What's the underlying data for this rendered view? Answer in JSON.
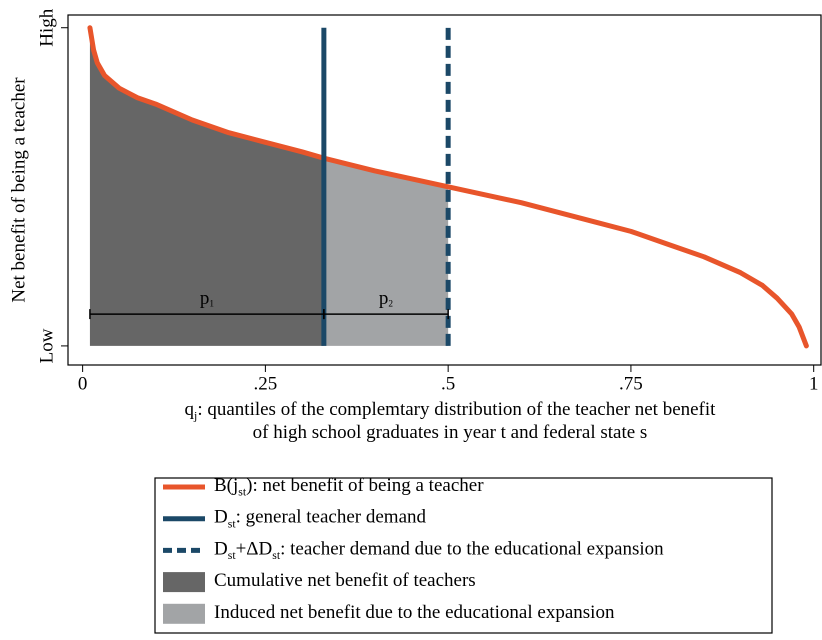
{
  "chart_data": {
    "type": "line",
    "y_label": "Net benefit of being a teacher",
    "x_label": [
      [
        {
          "t": "q"
        },
        {
          "t": "j",
          "sub": true
        },
        {
          "t": ": quantiles of the complemtary distribution of the teacher net benefit"
        }
      ],
      [
        {
          "t": "of high school graduates in year t and federal state s"
        }
      ]
    ],
    "xlim": [
      -0.02,
      1.01
    ],
    "ylim": [
      -0.06,
      1.04
    ],
    "xticks": [
      0,
      {
        "value": 0.25,
        "label": ".25"
      },
      {
        "value": 0.5,
        "label": ".5"
      },
      {
        "value": 0.75,
        "label": ".75"
      },
      1
    ],
    "yticks": [
      {
        "value": 0,
        "label": "Low"
      },
      {
        "value": 1,
        "label": "High"
      }
    ],
    "series": [
      {
        "type": "line",
        "color": "#e8552b",
        "name": [
          {
            "t": "B(j"
          },
          {
            "t": "st",
            "sub": true
          },
          {
            "t": "): net benefit of being a teacher"
          }
        ],
        "x": [
          0.01,
          0.015,
          0.02,
          0.03,
          0.05,
          0.075,
          0.1,
          0.15,
          0.2,
          0.25,
          0.3,
          0.33,
          0.4,
          0.5,
          0.6,
          0.7,
          0.75,
          0.8,
          0.85,
          0.9,
          0.93,
          0.95,
          0.97,
          0.98,
          0.99
        ],
        "values": [
          1,
          0.93,
          0.89,
          0.85,
          0.81,
          0.78,
          0.76,
          0.71,
          0.67,
          0.64,
          0.61,
          0.59,
          0.55,
          0.5,
          0.45,
          0.39,
          0.36,
          0.32,
          0.28,
          0.23,
          0.19,
          0.15,
          0.1,
          0.06,
          0
        ]
      },
      {
        "type": "vline",
        "color": "#1b4867",
        "dash": false,
        "name": [
          {
            "t": "D"
          },
          {
            "t": "st",
            "sub": true
          },
          {
            "t": ": general teacher demand"
          }
        ],
        "x": 0.33
      },
      {
        "type": "vline",
        "color": "#1b4867",
        "dash": true,
        "name": [
          {
            "t": "D"
          },
          {
            "t": "st",
            "sub": true
          },
          {
            "t": "+ΔD"
          },
          {
            "t": "st",
            "sub": true
          },
          {
            "t": ": teacher demand due to the educational expansion"
          }
        ],
        "x": 0.5
      },
      {
        "type": "area",
        "color": "#666666",
        "name": [
          {
            "t": "Cumulative net benefit of teachers"
          }
        ],
        "x": [
          0.01,
          0.015,
          0.02,
          0.03,
          0.05,
          0.075,
          0.1,
          0.15,
          0.2,
          0.25,
          0.3,
          0.33
        ],
        "values": [
          1,
          0.93,
          0.89,
          0.85,
          0.81,
          0.78,
          0.76,
          0.71,
          0.67,
          0.64,
          0.61,
          0.59
        ]
      },
      {
        "type": "area",
        "color": "#a2a4a6",
        "name": [
          {
            "t": "Induced net benefit due to the educational expansion"
          }
        ],
        "x": [
          0.33,
          0.4,
          0.5
        ],
        "values": [
          0.59,
          0.55,
          0.5
        ]
      }
    ],
    "brackets": [
      {
        "label": [
          {
            "t": "p"
          },
          {
            "t": "1",
            "sub": true
          }
        ],
        "x": [
          0.01,
          0.33
        ],
        "y": 0.1
      },
      {
        "label": [
          {
            "t": "p"
          },
          {
            "t": "2",
            "sub": true
          }
        ],
        "x": [
          0.33,
          0.5
        ],
        "y": 0.1
      }
    ]
  }
}
